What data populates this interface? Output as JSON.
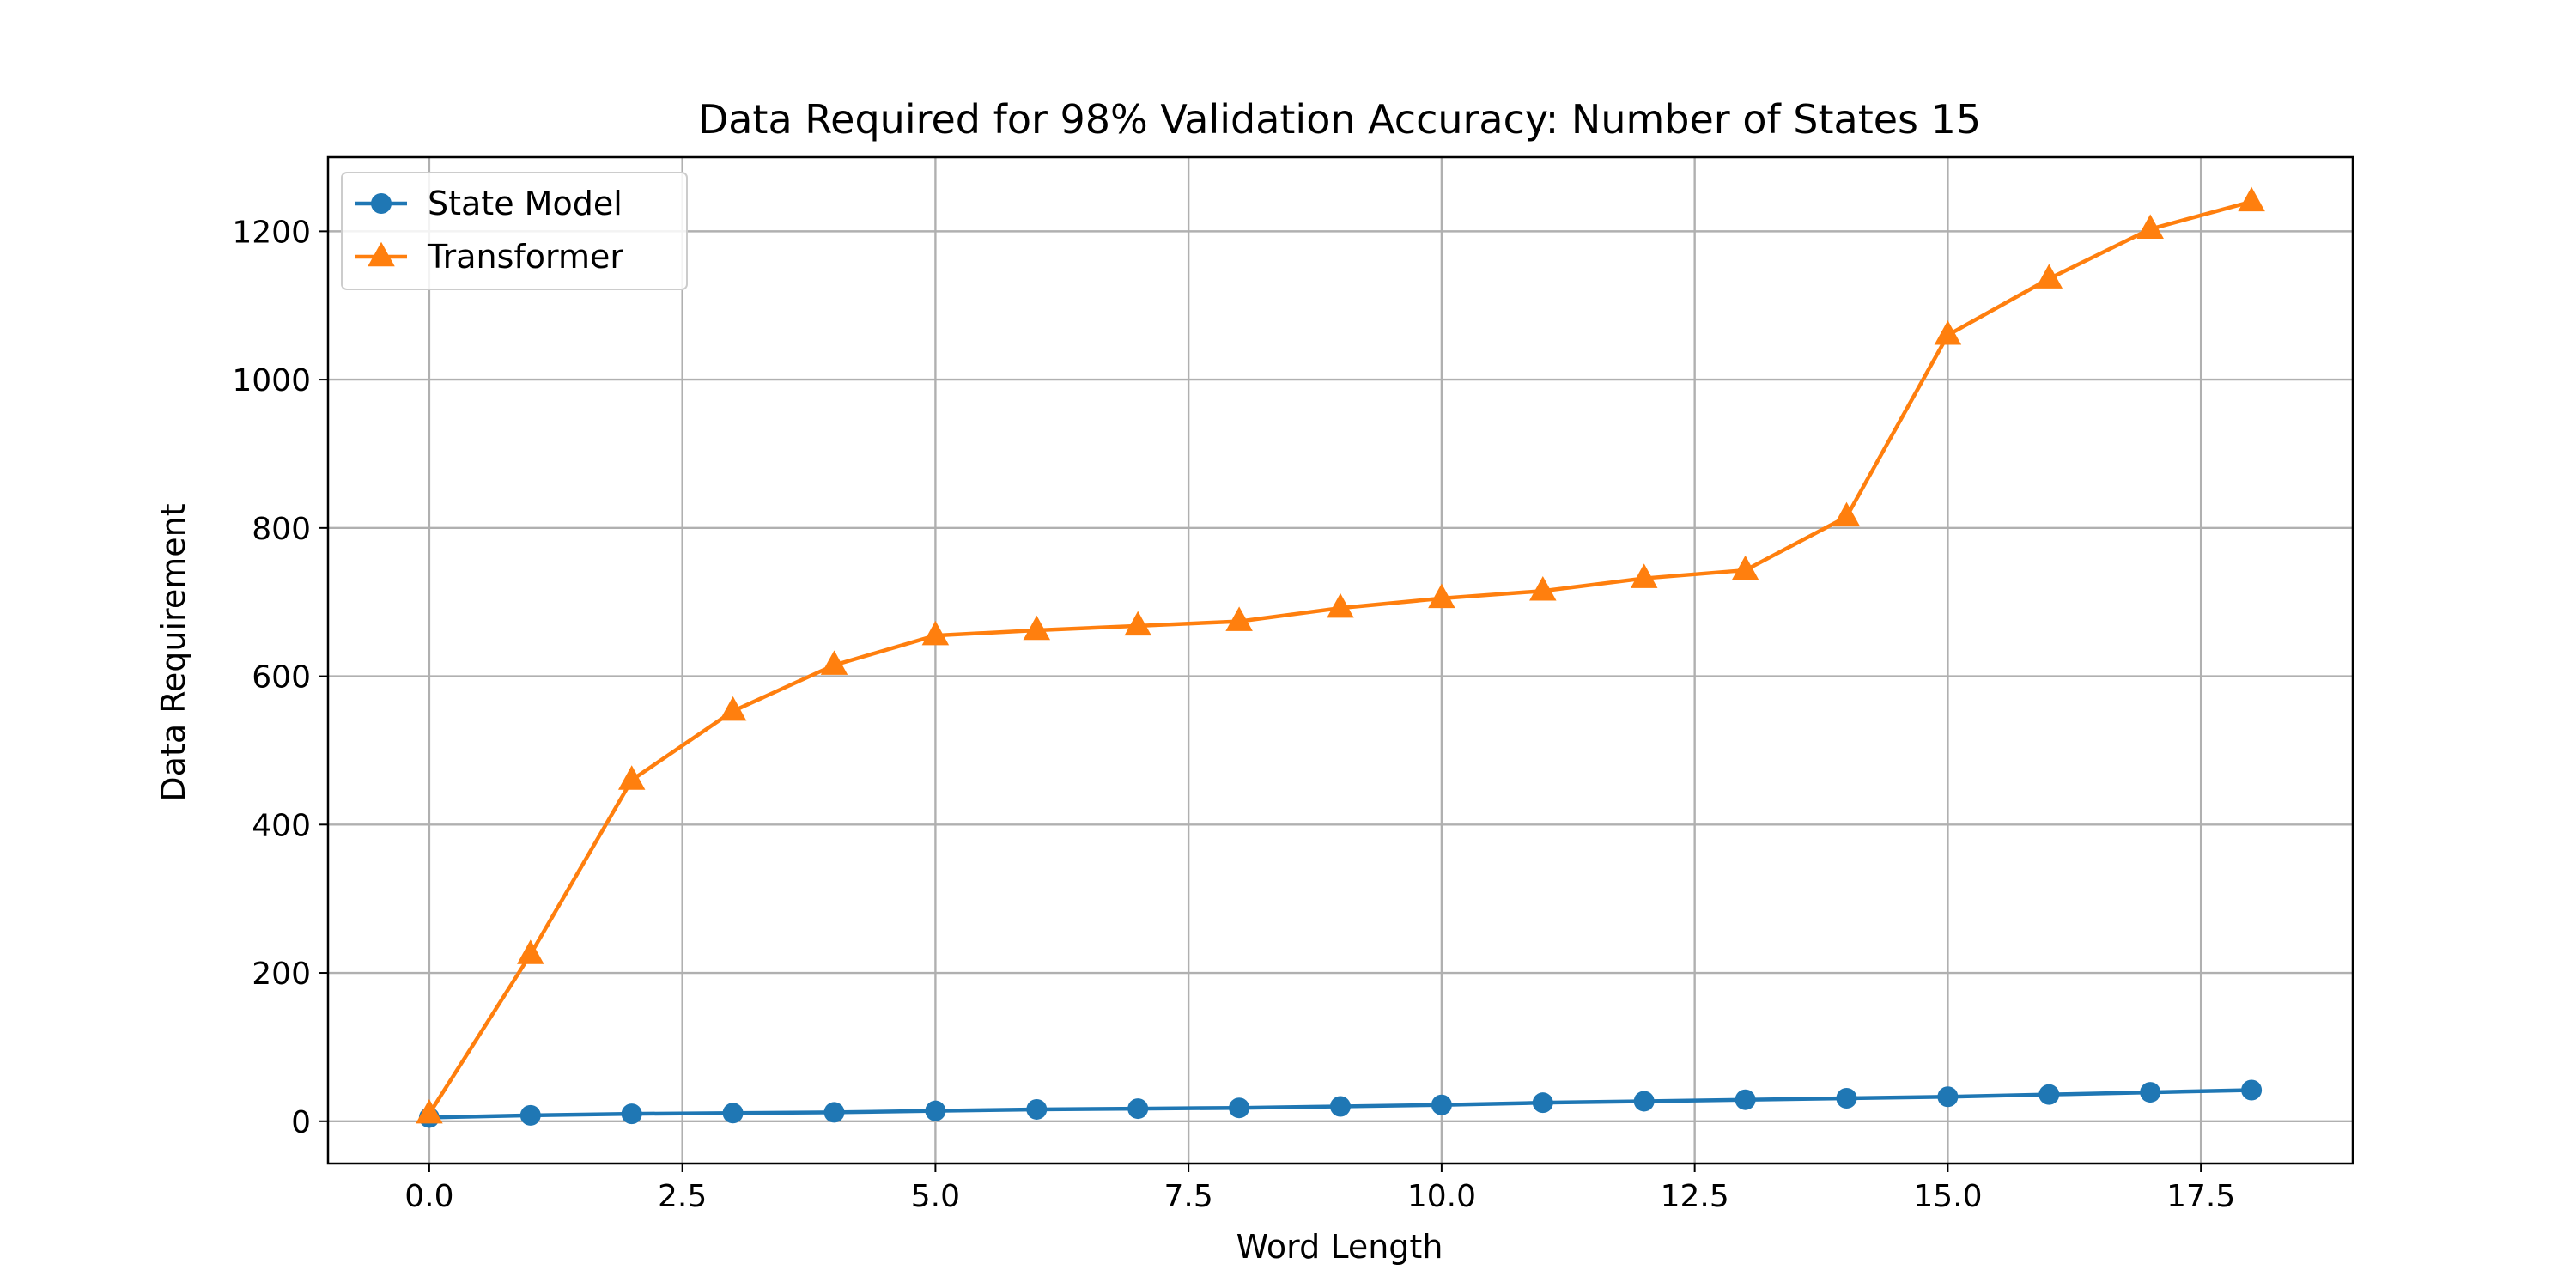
{
  "chart_data": {
    "type": "line",
    "title": "Data Required for 98% Validation Accuracy: Number of States 15",
    "xlabel": "Word Length",
    "ylabel": "Data Requirement",
    "xlim": [
      -1.0,
      19.0
    ],
    "ylim": [
      -57,
      1300
    ],
    "x_ticks": [
      0.0,
      2.5,
      5.0,
      7.5,
      10.0,
      12.5,
      15.0,
      17.5
    ],
    "x_tick_labels": [
      "0.0",
      "2.5",
      "5.0",
      "7.5",
      "10.0",
      "12.5",
      "15.0",
      "17.5"
    ],
    "y_ticks": [
      0,
      200,
      400,
      600,
      800,
      1000,
      1200
    ],
    "y_tick_labels": [
      "0",
      "200",
      "400",
      "600",
      "800",
      "1000",
      "1200"
    ],
    "grid": true,
    "legend_position": "top-left",
    "x": [
      0,
      1,
      2,
      3,
      4,
      5,
      6,
      7,
      8,
      9,
      10,
      11,
      12,
      13,
      14,
      15,
      16,
      17,
      18
    ],
    "series": [
      {
        "name": "State Model",
        "color": "#1f77b4",
        "marker": "circle",
        "values": [
          5,
          8,
          10,
          11,
          12,
          14,
          16,
          17,
          18,
          20,
          22,
          25,
          27,
          29,
          31,
          33,
          36,
          39,
          42
        ]
      },
      {
        "name": "Transformer",
        "color": "#ff7f0e",
        "marker": "triangle",
        "values": [
          10,
          225,
          460,
          553,
          615,
          655,
          662,
          668,
          674,
          692,
          705,
          715,
          732,
          743,
          815,
          1060,
          1136,
          1203,
          1240
        ]
      }
    ]
  }
}
